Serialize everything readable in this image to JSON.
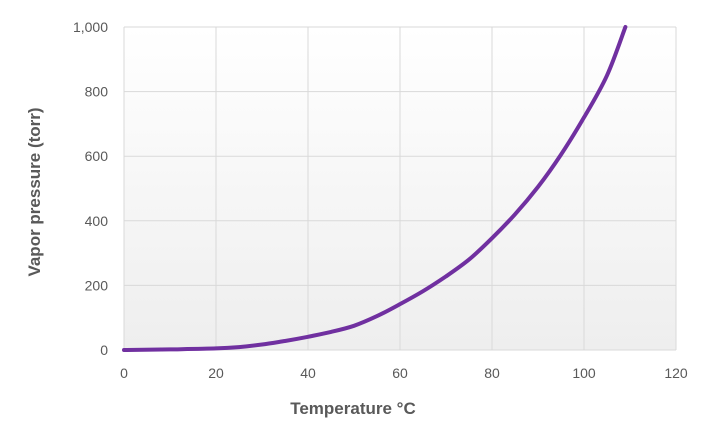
{
  "chart_data": {
    "type": "line",
    "title": "",
    "xlabel": "Temperature °C",
    "ylabel": "Vapor pressure  (torr)",
    "xlim": [
      0,
      120
    ],
    "ylim": [
      0,
      1000
    ],
    "x_ticks": [
      0,
      20,
      40,
      60,
      80,
      100,
      120
    ],
    "x_tick_labels": [
      "0",
      "20",
      "40",
      "60",
      "80",
      "100",
      "120"
    ],
    "y_ticks": [
      0,
      200,
      400,
      600,
      800,
      1000
    ],
    "y_tick_labels": [
      "0",
      "200",
      "400",
      "600",
      "800",
      "1,000"
    ],
    "grid": true,
    "legend": "none",
    "colors": {
      "line": "#7030a0",
      "grid": "#d9d9d9",
      "text": "#595959",
      "plot_bg_top": "#ffffff",
      "plot_bg_bottom": "#eeeeee"
    },
    "series": [
      {
        "x": [
          0,
          10,
          20,
          25,
          30,
          35,
          40,
          45,
          50,
          55,
          60,
          65,
          70,
          75,
          80,
          85,
          90,
          95,
          100,
          105,
          109
        ],
        "values": [
          0,
          2,
          5,
          9,
          17,
          28,
          41,
          56,
          75,
          105,
          142,
          182,
          228,
          280,
          346,
          420,
          505,
          605,
          720,
          850,
          1000
        ]
      }
    ]
  }
}
